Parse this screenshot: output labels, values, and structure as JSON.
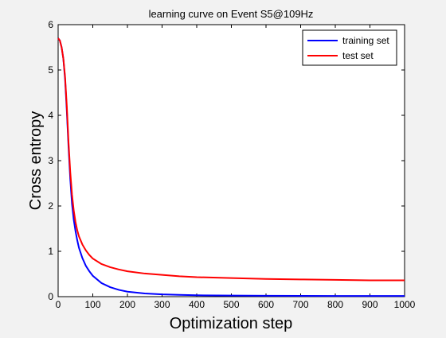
{
  "chart_data": {
    "type": "line",
    "title": "learning curve on Event S5@109Hz",
    "xlabel": "Optimization step",
    "ylabel": "Cross entropy",
    "xlim": [
      0,
      1000
    ],
    "ylim": [
      0,
      6
    ],
    "xticks": [
      0,
      100,
      200,
      300,
      400,
      500,
      600,
      700,
      800,
      900,
      1000
    ],
    "yticks": [
      0,
      1,
      2,
      3,
      4,
      5,
      6
    ],
    "grid": false,
    "legend_position": "top-right",
    "series": [
      {
        "name": "training set",
        "color": "#0000ff",
        "x": [
          0,
          5,
          10,
          15,
          20,
          25,
          30,
          35,
          40,
          45,
          50,
          55,
          60,
          70,
          80,
          90,
          100,
          125,
          150,
          175,
          200,
          250,
          300,
          350,
          400,
          500,
          600,
          700,
          800,
          900,
          1000
        ],
        "y": [
          5.7,
          5.65,
          5.5,
          5.25,
          4.8,
          4.1,
          3.3,
          2.6,
          2.05,
          1.7,
          1.45,
          1.25,
          1.08,
          0.85,
          0.68,
          0.56,
          0.46,
          0.3,
          0.21,
          0.15,
          0.11,
          0.07,
          0.05,
          0.04,
          0.03,
          0.025,
          0.02,
          0.018,
          0.016,
          0.015,
          0.015
        ]
      },
      {
        "name": "test set",
        "color": "#ff0000",
        "x": [
          0,
          5,
          10,
          15,
          20,
          25,
          30,
          35,
          40,
          45,
          50,
          55,
          60,
          70,
          80,
          90,
          100,
          125,
          150,
          175,
          200,
          250,
          300,
          350,
          400,
          500,
          600,
          700,
          800,
          900,
          1000
        ],
        "y": [
          5.7,
          5.65,
          5.5,
          5.25,
          4.85,
          4.2,
          3.4,
          2.75,
          2.25,
          1.9,
          1.65,
          1.47,
          1.33,
          1.15,
          1.02,
          0.92,
          0.84,
          0.72,
          0.65,
          0.6,
          0.56,
          0.51,
          0.48,
          0.45,
          0.43,
          0.41,
          0.39,
          0.38,
          0.37,
          0.36,
          0.36
        ]
      }
    ]
  }
}
